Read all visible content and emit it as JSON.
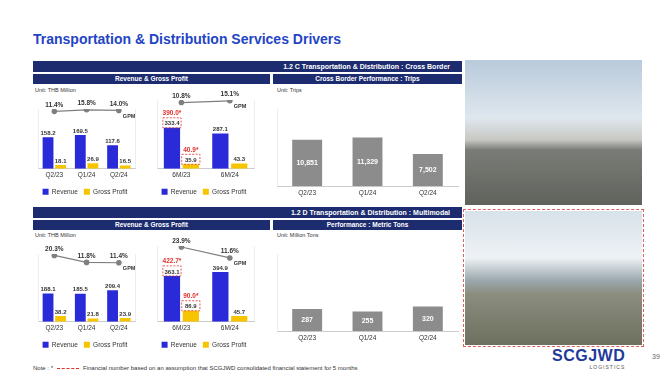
{
  "title": "Transportation & Distribution Services Drivers",
  "sections": [
    {
      "header": "1.2 C Transportation & Distribution : Cross Border",
      "panels": [
        "Revenue & Gross Profit",
        "Cross Border Performance : Trips"
      ]
    },
    {
      "header": "1.2 D Transportation & Distribution : Multimodal",
      "panels": [
        "Revenue & Gross Profit",
        "Performance : Metric Tons"
      ]
    }
  ],
  "chart_data": [
    {
      "type": "bar",
      "subtitle": "Unit: THB Million",
      "categories": [
        "Q2/23",
        "Q1/24",
        "Q2/24"
      ],
      "series": [
        {
          "name": "Revenue",
          "color": "#2a2ad8",
          "values": [
            158.2,
            169.5,
            117.6
          ]
        },
        {
          "name": "Gross Profit",
          "color": "#f7c400",
          "values": [
            18.1,
            26.9,
            16.5
          ]
        },
        {
          "name": "GPM",
          "type": "line",
          "axis": "y2",
          "color": "#7f7f7f",
          "marker": "circle",
          "values": [
            11.4,
            15.8,
            14.0
          ],
          "value_labels": [
            "11.4%",
            "15.8%",
            "14.0%"
          ]
        }
      ],
      "ylim": [
        0,
        300
      ],
      "y2lim": [
        -150,
        18
      ],
      "tick_labels": "x",
      "data_labels": true,
      "legend": "bottom"
    },
    {
      "type": "bar",
      "categories": [
        "6M/23",
        "6M/24"
      ],
      "series": [
        {
          "name": "Revenue",
          "color": "#2a2ad8",
          "values": [
            333.4,
            287.1
          ]
        },
        {
          "name": "Gross Profit",
          "color": "#f7c400",
          "values": [
            35.9,
            43.3
          ]
        },
        {
          "name": "GPM",
          "type": "line",
          "axis": "y2",
          "color": "#7f7f7f",
          "marker": "circle",
          "values": [
            10.8,
            15.1
          ],
          "value_labels": [
            "10.8%",
            "15.1%"
          ]
        }
      ],
      "annotations": [
        {
          "category": "6M/23",
          "series": "Revenue",
          "value": 390.0,
          "label": "390.0*"
        },
        {
          "category": "6M/23",
          "series": "Gross Profit",
          "value": 40.9,
          "label": "40.9*"
        }
      ],
      "ylim": [
        0,
        560
      ],
      "y2lim": [
        -150,
        17
      ],
      "tick_labels": "x",
      "data_labels": true,
      "legend": "bottom"
    },
    {
      "type": "bar",
      "subtitle": "Unit: Trips",
      "categories": [
        "Q2/23",
        "Q1/24",
        "Q2/24"
      ],
      "values": [
        10851,
        11329,
        7502
      ],
      "value_labels": [
        "10,851",
        "11,329",
        "7,502"
      ],
      "color": "#8c8c8c",
      "ylim": [
        0,
        18000
      ],
      "tick_labels": "x",
      "data_labels": true
    },
    {
      "type": "bar",
      "subtitle": "Unit: THB Million",
      "categories": [
        "Q2/23",
        "Q1/24",
        "Q2/24"
      ],
      "series": [
        {
          "name": "Revenue",
          "color": "#2a2ad8",
          "values": [
            188.1,
            185.5,
            209.4
          ]
        },
        {
          "name": "Gross Profit",
          "color": "#f7c400",
          "values": [
            38.2,
            21.8,
            23.9
          ]
        },
        {
          "name": "GPM",
          "type": "line",
          "axis": "y2",
          "color": "#7f7f7f",
          "marker": "circle",
          "values": [
            20.3,
            11.8,
            11.4
          ],
          "value_labels": [
            "20.3%",
            "11.8%",
            "11.4%"
          ]
        }
      ],
      "ylim": [
        0,
        450
      ],
      "y2lim": [
        -60,
        22
      ],
      "tick_labels": "x",
      "data_labels": true,
      "legend": "bottom"
    },
    {
      "type": "bar",
      "categories": [
        "6M/23",
        "6M/24"
      ],
      "series": [
        {
          "name": "Revenue",
          "color": "#2a2ad8",
          "values": [
            363.1,
            394.9
          ]
        },
        {
          "name": "Gross Profit",
          "color": "#f7c400",
          "values": [
            86.9,
            45.7
          ]
        },
        {
          "name": "GPM",
          "type": "line",
          "axis": "y2",
          "color": "#7f7f7f",
          "marker": "circle",
          "values": [
            23.9,
            11.6
          ],
          "value_labels": [
            "23.9%",
            "11.6%"
          ]
        }
      ],
      "annotations": [
        {
          "category": "6M/23",
          "series": "Revenue",
          "value": 422.7,
          "label": "422.7*"
        },
        {
          "category": "6M/23",
          "series": "Gross Profit",
          "value": 90.0,
          "label": "90.0*"
        }
      ],
      "ylim": [
        0,
        600
      ],
      "y2lim": [
        -60,
        25
      ],
      "tick_labels": "x",
      "data_labels": true,
      "legend": "bottom"
    },
    {
      "type": "bar",
      "subtitle": "Unit: Million Tons",
      "categories": [
        "Q2/23",
        "Q1/24",
        "Q2/24"
      ],
      "values": [
        287,
        255,
        320
      ],
      "color": "#8c8c8c",
      "ylim": [
        0,
        1000
      ],
      "tick_labels": "x",
      "data_labels": true
    }
  ],
  "note": {
    "label": "Note : *",
    "text": "Financial number based on an assumption that SCGJWD consolidated financial statement for 5 months"
  },
  "logo": {
    "name": "SCGJWD",
    "tagline": "LOGISTICS"
  },
  "page": 39
}
